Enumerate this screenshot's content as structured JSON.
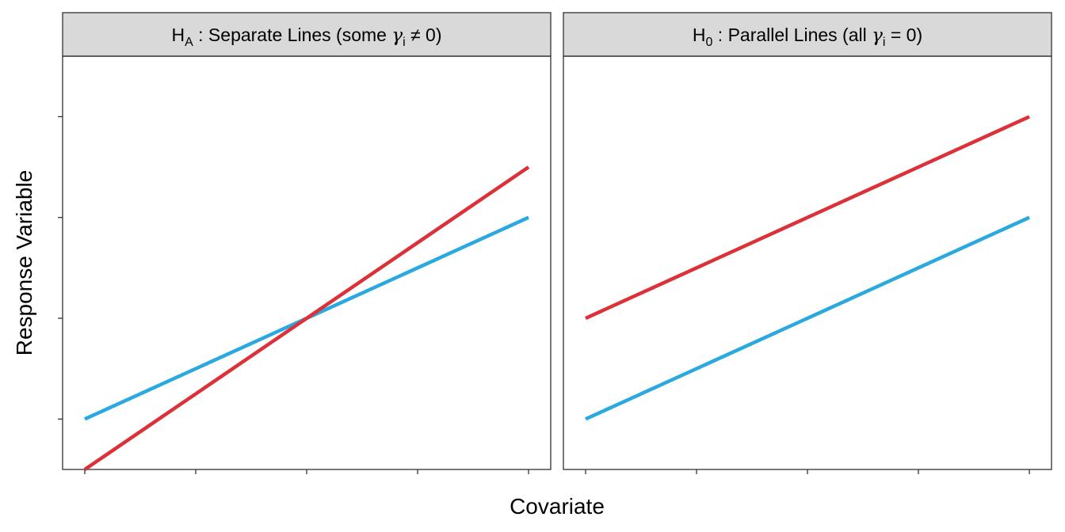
{
  "chart_data": {
    "type": "line",
    "ylabel": "Response Variable",
    "xlabel": "Covariate",
    "grid": false,
    "colors": {
      "red": "#dc3139",
      "blue": "#29a9dd"
    },
    "shared_axes": {
      "xlim": [
        0,
        4
      ],
      "x_ticks": [
        0,
        1,
        2,
        3,
        4
      ],
      "ylim": [
        -0.5,
        3.6
      ],
      "y_ticks": [
        0,
        1,
        2,
        3
      ]
    },
    "panels": [
      {
        "strip": {
          "main": "H",
          "sub": "A",
          "rest": " : Separate Lines (some ",
          "greek": "γ",
          "gsub": "i",
          "op": " ≠ 0)"
        },
        "series": [
          {
            "color": "#29a9dd",
            "x": [
              0,
              4
            ],
            "y": [
              0,
              2
            ]
          },
          {
            "color": "#dc3139",
            "x": [
              0,
              4
            ],
            "y": [
              -0.5,
              2.5
            ]
          }
        ]
      },
      {
        "strip": {
          "main": "H",
          "sub": "0",
          "rest": " : Parallel Lines (all ",
          "greek": "γ",
          "gsub": "i",
          "op": " = 0)"
        },
        "series": [
          {
            "color": "#29a9dd",
            "x": [
              0,
              4
            ],
            "y": [
              0,
              2
            ]
          },
          {
            "color": "#dc3139",
            "x": [
              0,
              4
            ],
            "y": [
              1,
              3
            ]
          }
        ]
      }
    ]
  }
}
